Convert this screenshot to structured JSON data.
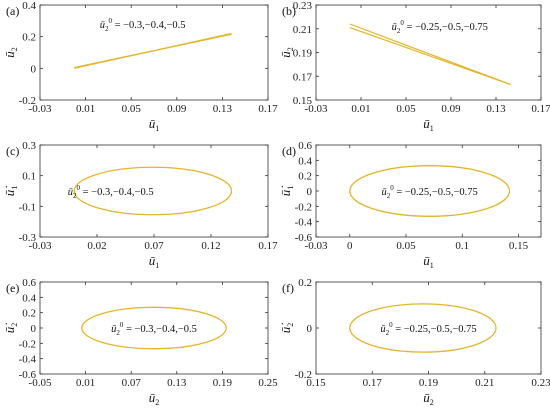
{
  "colors": {
    "curve": "#E4B52A",
    "axis": "#333333",
    "background": "#ffffff"
  },
  "chart_data": [
    {
      "panel": "(a)",
      "type": "line",
      "xlabel": "ū",
      "xlabel_sub": "1",
      "ylabel": "ū",
      "ylabel_sub": "2",
      "xlim": [
        -0.03,
        0.17
      ],
      "ylim": [
        -0.2,
        0.4
      ],
      "xticks": [
        "-0.03",
        "0.01",
        "0.05",
        "0.09",
        "0.13",
        "0.17"
      ],
      "yticks": [
        "-0.2",
        "0",
        "0.2",
        "0.4"
      ],
      "annotation": {
        "symbol": "ū",
        "sub": "2",
        "sup": "0",
        "text": " = −0.3,−0.4,−0.5",
        "x": 0.06,
        "y": 0.28
      },
      "series": [
        {
          "x": [
            0.0,
            0.138,
            0.0
          ],
          "y": [
            0.0,
            0.22,
            0.0
          ]
        },
        {
          "x": [
            0.0,
            0.138,
            0.0
          ],
          "y": [
            0.005,
            0.215,
            0.005
          ]
        }
      ]
    },
    {
      "panel": "(b)",
      "type": "line",
      "xlabel": "ū",
      "xlabel_sub": "1",
      "ylabel": "ū",
      "ylabel_sub": "2",
      "xlim": [
        -0.03,
        0.17
      ],
      "ylim": [
        0.15,
        0.23
      ],
      "xticks": [
        "-0.03",
        "0.01",
        "0.05",
        "0.09",
        "0.13",
        "0.17"
      ],
      "yticks": [
        "0.15",
        "0.17",
        "0.19",
        "0.21",
        "0.23"
      ],
      "annotation": {
        "symbol": "ū",
        "sub": "2",
        "sup": "0",
        "text": " = −0.25,−0.5,−0.75",
        "x": 0.08,
        "y": 0.2125
      },
      "series": [
        {
          "x": [
            0.0,
            0.143
          ],
          "y": [
            0.214,
            0.163
          ]
        },
        {
          "x": [
            0.0,
            0.143
          ],
          "y": [
            0.211,
            0.163
          ]
        }
      ]
    },
    {
      "panel": "(c)",
      "type": "line",
      "xlabel": "ū",
      "xlabel_sub": "1",
      "ylabel": "ū̇",
      "ylabel_sub": "1",
      "xlim": [
        -0.03,
        0.17
      ],
      "ylim": [
        -0.3,
        0.3
      ],
      "xticks": [
        "-0.03",
        "0.02",
        "0.07",
        "0.12",
        "0.17"
      ],
      "yticks": [
        "-0.3",
        "-0.1",
        "0.1",
        "0.3"
      ],
      "annotation": {
        "symbol": "ū",
        "sub": "2",
        "sup": "0",
        "text": " = −0.3,−0.4,−0.5",
        "x": 0.032,
        "y": 0.0
      },
      "ellipse": {
        "cx": 0.069,
        "cy": 0.0,
        "rx": 0.069,
        "ry": 0.155
      }
    },
    {
      "panel": "(d)",
      "type": "line",
      "xlabel": "ū",
      "xlabel_sub": "1",
      "ylabel": "ū̇",
      "ylabel_sub": "1",
      "xlim": [
        -0.03,
        0.17
      ],
      "ylim": [
        -0.6,
        0.6
      ],
      "xticks": [
        "-0.03",
        "0",
        "0.05",
        "0.1",
        "0.15"
      ],
      "yticks": [
        "-0.6",
        "-0.4",
        "-0.2",
        "0",
        "0.2",
        "0.4",
        "0.6"
      ],
      "annotation": {
        "symbol": "ū",
        "sub": "2",
        "sup": "0",
        "text": " = −0.25,−0.5,−0.75",
        "x": 0.071,
        "y": 0.0
      },
      "ellipse": {
        "cx": 0.071,
        "cy": 0.0,
        "rx": 0.071,
        "ry": 0.33
      }
    },
    {
      "panel": "(e)",
      "type": "line",
      "xlabel": "ū",
      "xlabel_sub": "2",
      "ylabel": "ū̇",
      "ylabel_sub": "2",
      "xlim": [
        -0.05,
        0.25
      ],
      "ylim": [
        -0.6,
        0.6
      ],
      "xticks": [
        "-0.05",
        "0.01",
        "0.07",
        "0.13",
        "0.19",
        "0.25"
      ],
      "yticks": [
        "-0.6",
        "-0.4",
        "-0.2",
        "0",
        "0.2",
        "0.4",
        "0.6"
      ],
      "annotation": {
        "symbol": "ū",
        "sub": "2",
        "sup": "0",
        "text": " = −0.3,−0.4,−0.5",
        "x": 0.1,
        "y": 0.0
      },
      "ellipse": {
        "cx": 0.1,
        "cy": 0.0,
        "rx": 0.095,
        "ry": 0.27
      }
    },
    {
      "panel": "(f)",
      "type": "line",
      "xlabel": "ū",
      "xlabel_sub": "2",
      "ylabel": "ū̇",
      "ylabel_sub": "2",
      "xlim": [
        0.15,
        0.23
      ],
      "ylim": [
        -0.2,
        0.2
      ],
      "xticks": [
        "0.15",
        "0.17",
        "0.19",
        "0.21",
        "0.23"
      ],
      "yticks": [
        "-0.2",
        "0",
        "0.2"
      ],
      "annotation": {
        "symbol": "ū",
        "sub": "2",
        "sup": "0",
        "text": " = −0.25,−0.5,−0.75",
        "x": 0.19,
        "y": 0.0
      },
      "ellipse": {
        "cx": 0.188,
        "cy": 0.0,
        "rx": 0.026,
        "ry": 0.105
      }
    }
  ]
}
